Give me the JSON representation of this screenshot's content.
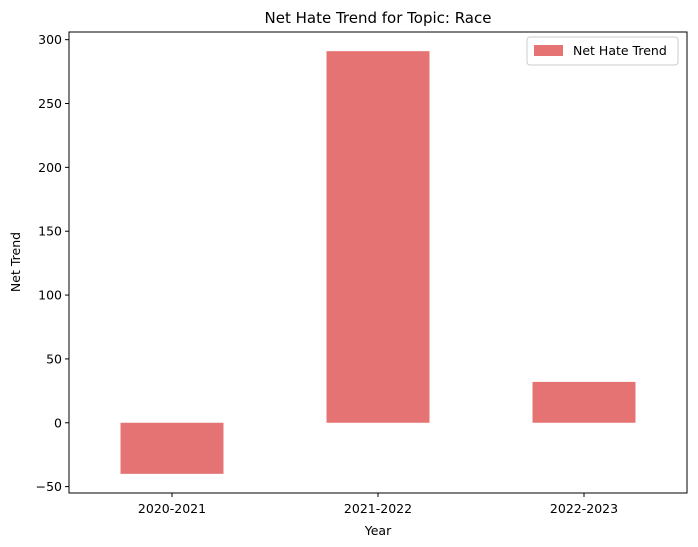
{
  "chart_data": {
    "type": "bar",
    "title": "Net Hate Trend for Topic: Race",
    "xlabel": "Year",
    "ylabel": "Net Trend",
    "categories": [
      "2020-2021",
      "2021-2022",
      "2022-2023"
    ],
    "series": [
      {
        "name": "Net Hate Trend",
        "values": [
          -40,
          291,
          32
        ],
        "color": "#e57373"
      }
    ],
    "ylim": [
      -55,
      306
    ],
    "yticks": [
      -50,
      0,
      50,
      100,
      150,
      200,
      250,
      300
    ],
    "ytick_labels": [
      "−50",
      "0",
      "50",
      "100",
      "150",
      "200",
      "250",
      "300"
    ],
    "grid": false,
    "legend_position": "top-right"
  }
}
